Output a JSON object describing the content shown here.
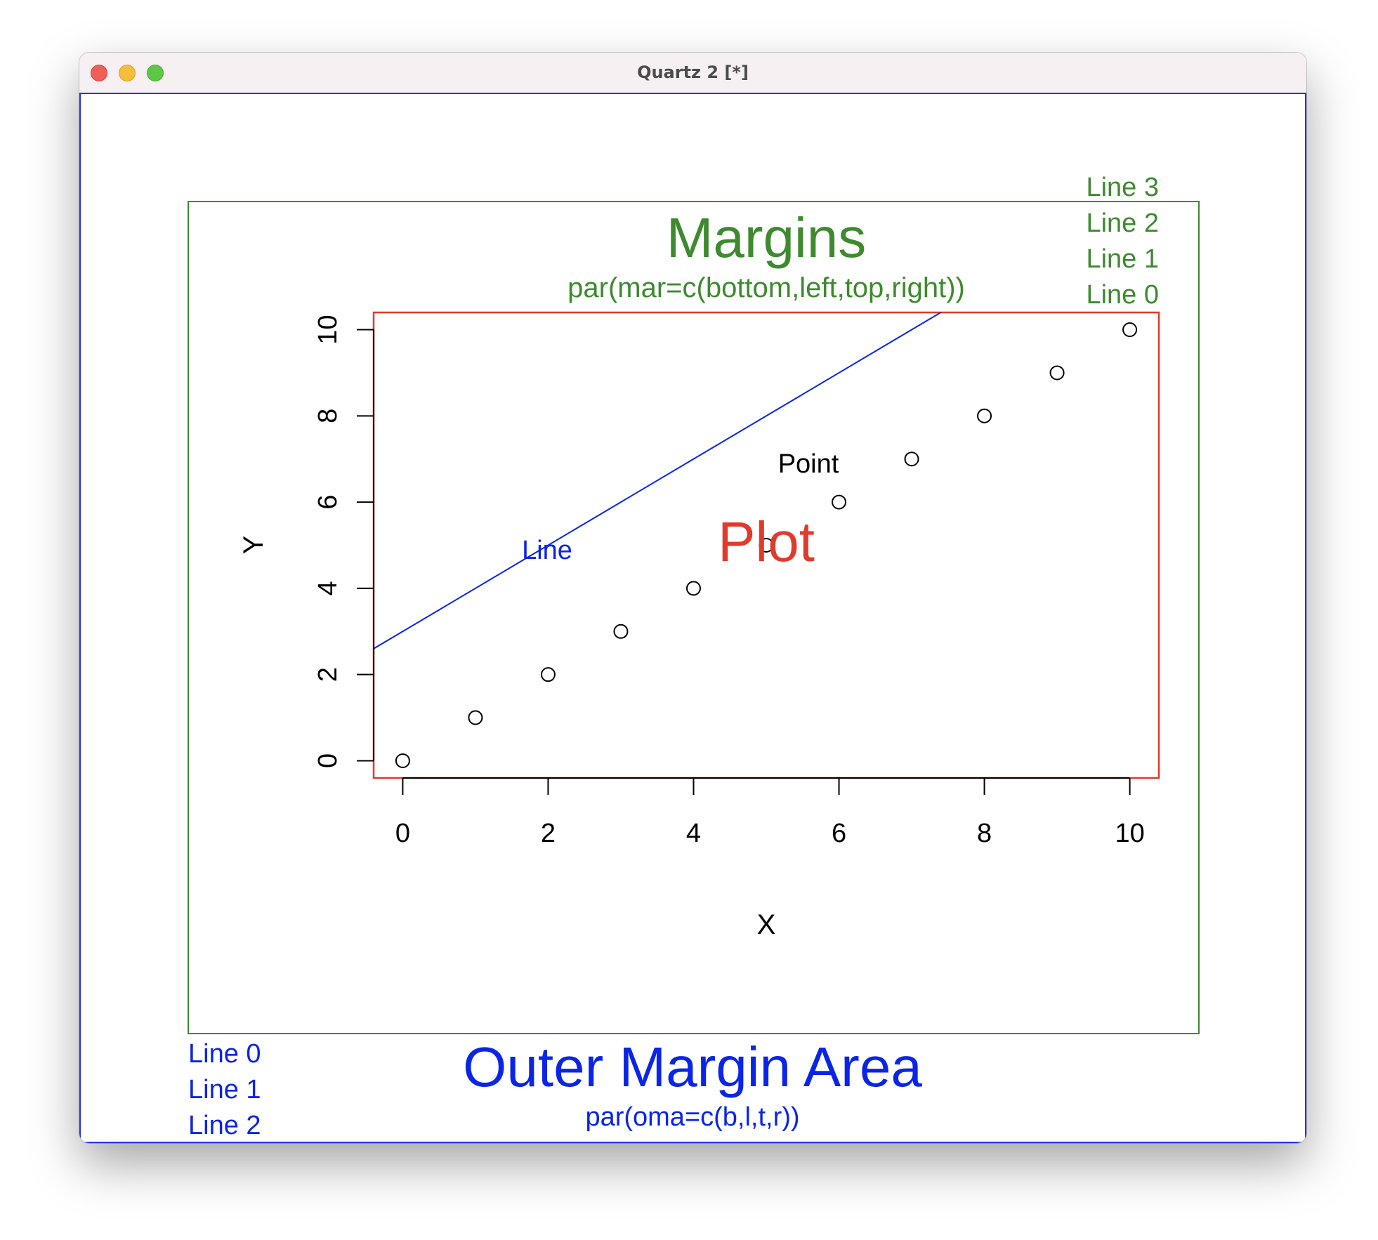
{
  "window": {
    "title": "Quartz 2 [*]"
  },
  "colors": {
    "outer": "#0a24e8",
    "margins": "#3d8a2f",
    "plot": "#e03a2c",
    "line": "#0a24e8",
    "axis": "#000000"
  },
  "annotations": {
    "margins_title": "Margins",
    "margins_subtitle": "par(mar=c(bottom,left,top,right))",
    "margin_lines": [
      "Line 3",
      "Line 2",
      "Line 1",
      "Line 0"
    ],
    "plot_label": "Plot",
    "line_label": "Line",
    "point_label": "Point",
    "outer_title": "Outer Margin Area",
    "outer_subtitle": "par(oma=c(b,l,t,r))",
    "outer_lines": [
      "Line 0",
      "Line 1",
      "Line 2"
    ]
  },
  "chart_data": {
    "type": "scatter",
    "xlabel": "X",
    "ylabel": "Y",
    "xlim": [
      -0.4,
      10.4
    ],
    "ylim": [
      -0.4,
      10.4
    ],
    "x_ticks": [
      0,
      2,
      4,
      6,
      8,
      10
    ],
    "y_ticks": [
      0,
      2,
      4,
      6,
      8,
      10
    ],
    "points": {
      "x": [
        0,
        1,
        2,
        3,
        4,
        5,
        6,
        7,
        8,
        9,
        10
      ],
      "y": [
        0,
        1,
        2,
        3,
        4,
        5,
        6,
        7,
        8,
        9,
        10
      ]
    },
    "abline": {
      "intercept": 3,
      "slope": 1
    }
  }
}
